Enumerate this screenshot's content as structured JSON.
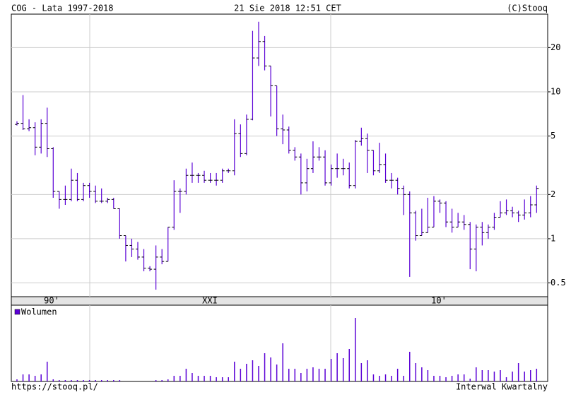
{
  "chart_data": {
    "type": "ohlc",
    "title": "COG - Lata 1997-2018",
    "date": "21 Sie 2018 12:51 CET",
    "copyright": "(C)Stooq",
    "source": "https://stooq.pl/",
    "interval": "Interwal Kwartalny",
    "decades": [
      "90'",
      "XXI",
      "10'"
    ],
    "log_scale": true,
    "grid": true,
    "color": "#5a00d6",
    "ylim": [
      0.403,
      33.8
    ],
    "yticks": [
      0.5,
      1,
      2,
      5,
      10,
      20
    ],
    "open": [
      6.0,
      6.1,
      5.6,
      5.7,
      4.2,
      6.1,
      4.1,
      2.1,
      1.85,
      1.85,
      2.5,
      1.85,
      2.3,
      2.1,
      1.8,
      1.8,
      1.85,
      1.6,
      1.05,
      0.9,
      0.85,
      0.75,
      0.63,
      0.62,
      0.75,
      0.7,
      1.2,
      2.1,
      2.1,
      2.7,
      2.7,
      2.7,
      2.5,
      2.5,
      2.5,
      2.9,
      2.9,
      5.2,
      3.8,
      6.5,
      17,
      22,
      15,
      11,
      5.6,
      5.5,
      4.0,
      3.6,
      2.4,
      3.0,
      3.6,
      3.6,
      2.4,
      3.0,
      3.0,
      3.0,
      2.3,
      4.6,
      4.8,
      4.0,
      2.9,
      3.2,
      2.5,
      2.5,
      2.2,
      2.0,
      1.5,
      1.05,
      1.1,
      1.2,
      1.8,
      1.75,
      1.3,
      1.2,
      1.3,
      1.25,
      0.85,
      1.2,
      1.1,
      1.2,
      1.4,
      1.5,
      1.55,
      1.5,
      1.45,
      1.5,
      1.7
    ],
    "high": [
      6.3,
      9.5,
      6.5,
      6.2,
      6.5,
      7.8,
      4.2,
      2.1,
      2.3,
      3.0,
      2.8,
      2.4,
      2.4,
      2.3,
      2.2,
      1.9,
      1.9,
      1.6,
      1.05,
      1.0,
      0.95,
      0.85,
      0.65,
      0.9,
      0.85,
      1.2,
      2.5,
      2.2,
      3.0,
      3.3,
      2.8,
      2.9,
      2.8,
      2.8,
      3.0,
      3.0,
      6.5,
      6.0,
      7.0,
      26,
      30,
      24,
      15,
      11,
      7.0,
      5.8,
      4.2,
      3.8,
      3.5,
      4.6,
      4.2,
      4.0,
      3.2,
      3.8,
      3.5,
      3.3,
      4.7,
      5.7,
      5.2,
      4.0,
      4.5,
      3.8,
      2.8,
      2.6,
      2.3,
      2.1,
      1.55,
      1.6,
      1.9,
      1.95,
      1.85,
      1.8,
      1.6,
      1.5,
      1.45,
      1.3,
      1.25,
      1.3,
      1.25,
      1.5,
      1.8,
      1.85,
      1.65,
      1.55,
      1.85,
      1.95,
      2.3
    ],
    "low": [
      5.9,
      5.5,
      5.4,
      3.7,
      3.8,
      3.6,
      1.9,
      1.6,
      1.7,
      1.8,
      1.8,
      1.8,
      1.9,
      1.75,
      1.75,
      1.75,
      1.6,
      1.0,
      0.7,
      0.75,
      0.72,
      0.6,
      0.6,
      0.45,
      0.67,
      0.7,
      1.15,
      1.5,
      2.0,
      2.4,
      2.4,
      2.4,
      2.4,
      2.3,
      2.4,
      2.8,
      2.7,
      3.6,
      3.7,
      6.4,
      15,
      14,
      6.8,
      5.0,
      4.4,
      3.8,
      3.4,
      2.0,
      2.1,
      2.8,
      3.4,
      2.3,
      2.3,
      2.6,
      2.7,
      2.2,
      2.2,
      4.3,
      2.8,
      2.7,
      2.8,
      2.4,
      2.2,
      2.0,
      1.45,
      0.55,
      0.97,
      1.05,
      1.1,
      1.2,
      1.5,
      1.2,
      1.1,
      1.2,
      1.15,
      0.62,
      0.6,
      0.9,
      1.0,
      1.15,
      1.4,
      1.45,
      1.4,
      1.3,
      1.35,
      1.4,
      1.5
    ],
    "close": [
      6.1,
      5.6,
      5.7,
      4.2,
      6.1,
      4.1,
      2.1,
      1.85,
      1.85,
      2.5,
      1.85,
      2.3,
      2.1,
      1.8,
      1.8,
      1.85,
      1.6,
      1.05,
      0.9,
      0.85,
      0.75,
      0.63,
      0.62,
      0.75,
      0.7,
      1.2,
      2.1,
      2.1,
      2.7,
      2.7,
      2.7,
      2.5,
      2.5,
      2.5,
      2.9,
      2.9,
      5.2,
      3.8,
      6.5,
      17,
      22,
      15,
      11,
      5.6,
      5.5,
      4.0,
      3.6,
      2.4,
      3.0,
      3.6,
      3.6,
      2.4,
      3.0,
      3.0,
      3.0,
      2.3,
      4.6,
      4.8,
      4.0,
      2.9,
      3.2,
      2.5,
      2.5,
      2.2,
      2.0,
      1.5,
      1.05,
      1.1,
      1.2,
      1.8,
      1.75,
      1.3,
      1.2,
      1.3,
      1.25,
      0.85,
      1.2,
      1.1,
      1.2,
      1.4,
      1.5,
      1.55,
      1.5,
      1.45,
      1.5,
      1.7,
      2.2
    ],
    "volume_name": "Wolumen",
    "vlim": [
      0,
      100
    ],
    "volume": [
      3,
      10,
      10,
      8,
      10,
      28,
      3,
      2,
      2,
      2,
      2,
      2,
      2,
      2,
      2,
      2,
      2,
      2,
      0,
      0,
      0,
      0,
      0,
      2,
      2,
      3,
      8,
      8,
      18,
      12,
      8,
      8,
      8,
      6,
      6,
      6,
      28,
      18,
      25,
      30,
      22,
      40,
      34,
      24,
      54,
      18,
      18,
      12,
      18,
      20,
      18,
      18,
      32,
      40,
      33,
      46,
      90,
      26,
      30,
      10,
      8,
      10,
      8,
      18,
      8,
      42,
      26,
      20,
      16,
      8,
      8,
      6,
      8,
      10,
      10,
      4,
      20,
      16,
      16,
      14,
      16,
      6,
      14,
      26,
      14,
      16,
      18
    ]
  }
}
